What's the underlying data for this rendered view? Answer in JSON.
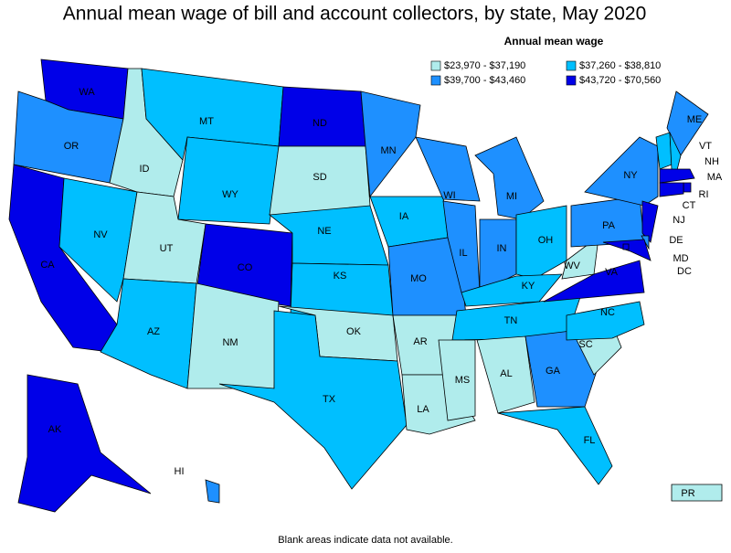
{
  "title": "Annual mean wage of bill and account collectors, by state, May 2020",
  "legend": {
    "title": "Annual mean wage",
    "classes": [
      {
        "label": "$23,970 - $37,190",
        "color": "#b0ecec"
      },
      {
        "label": "$37,260 - $38,810",
        "color": "#00bfff"
      },
      {
        "label": "$39,700 - $43,460",
        "color": "#1e90ff"
      },
      {
        "label": "$43,720 - $70,560",
        "color": "#0000e8"
      }
    ]
  },
  "states": [
    {
      "label": "WA",
      "class": 3
    },
    {
      "label": "OR",
      "class": 2
    },
    {
      "label": "CA",
      "class": 3
    },
    {
      "label": "NV",
      "class": 1
    },
    {
      "label": "ID",
      "class": 0
    },
    {
      "label": "MT",
      "class": 1
    },
    {
      "label": "WY",
      "class": 1
    },
    {
      "label": "UT",
      "class": 0
    },
    {
      "label": "AZ",
      "class": 1
    },
    {
      "label": "CO",
      "class": 3
    },
    {
      "label": "NM",
      "class": 0
    },
    {
      "label": "ND",
      "class": 3
    },
    {
      "label": "SD",
      "class": 0
    },
    {
      "label": "NE",
      "class": 1
    },
    {
      "label": "KS",
      "class": 1
    },
    {
      "label": "OK",
      "class": 0
    },
    {
      "label": "TX",
      "class": 1
    },
    {
      "label": "MN",
      "class": 2
    },
    {
      "label": "IA",
      "class": 1
    },
    {
      "label": "MO",
      "class": 2
    },
    {
      "label": "AR",
      "class": 0
    },
    {
      "label": "LA",
      "class": 0
    },
    {
      "label": "WI",
      "class": 2
    },
    {
      "label": "IL",
      "class": 2
    },
    {
      "label": "MI",
      "class": 2
    },
    {
      "label": "IN",
      "class": 2
    },
    {
      "label": "OH",
      "class": 1
    },
    {
      "label": "KY",
      "class": 1
    },
    {
      "label": "TN",
      "class": 1
    },
    {
      "label": "MS",
      "class": 0
    },
    {
      "label": "AL",
      "class": 0
    },
    {
      "label": "GA",
      "class": 2
    },
    {
      "label": "FL",
      "class": 1
    },
    {
      "label": "SC",
      "class": 0
    },
    {
      "label": "NC",
      "class": 1
    },
    {
      "label": "VA",
      "class": 3
    },
    {
      "label": "WV",
      "class": 0
    },
    {
      "label": "PA",
      "class": 2
    },
    {
      "label": "NY",
      "class": 2
    },
    {
      "label": "ME",
      "class": 2
    },
    {
      "label": "VT",
      "class": 1
    },
    {
      "label": "NH",
      "class": 1
    },
    {
      "label": "MA",
      "class": 3
    },
    {
      "label": "RI",
      "class": 3
    },
    {
      "label": "CT",
      "class": 3
    },
    {
      "label": "NJ",
      "class": 3
    },
    {
      "label": "DE",
      "class": 2
    },
    {
      "label": "MD",
      "class": 3
    },
    {
      "label": "DC",
      "class": 3
    },
    {
      "label": "AK",
      "class": 3
    },
    {
      "label": "HI",
      "class": 2
    },
    {
      "label": "PR",
      "class": 0
    }
  ],
  "footnote": "Blank areas indicate data not available."
}
